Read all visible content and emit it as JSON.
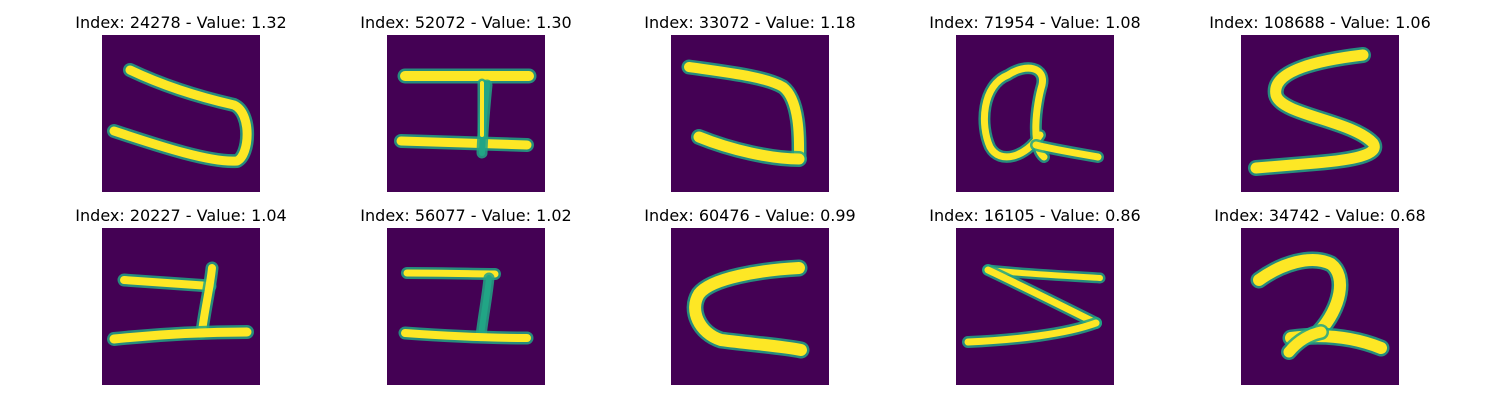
{
  "chart_data": {
    "type": "image-grid",
    "colormap": "viridis",
    "background_color": "#440154",
    "stroke_colors": [
      "#fde725",
      "#21a585",
      "#35b779"
    ],
    "panels": [
      {
        "title": "Index: 24278 - Value: 1.32",
        "index": 24278,
        "value": 1.32,
        "glyph": "U-rotated"
      },
      {
        "title": "Index: 52072 - Value: 1.30",
        "index": 52072,
        "value": 1.3,
        "glyph": "I-beam"
      },
      {
        "title": "Index: 33072 - Value: 1.18",
        "index": 33072,
        "value": 1.18,
        "glyph": "U-rotated-thick"
      },
      {
        "title": "Index: 71954 - Value: 1.08",
        "index": 71954,
        "value": 1.08,
        "glyph": "loop-a"
      },
      {
        "title": "Index: 108688 - Value: 1.06",
        "index": 108688,
        "value": 1.06,
        "glyph": "S"
      },
      {
        "title": "Index: 20227 - Value: 1.04",
        "index": 20227,
        "value": 1.04,
        "glyph": "bracket-left"
      },
      {
        "title": "Index: 56077 - Value: 1.02",
        "index": 56077,
        "value": 1.02,
        "glyph": "bracket-right"
      },
      {
        "title": "Index: 60476 - Value: 0.99",
        "index": 60476,
        "value": 0.99,
        "glyph": "C"
      },
      {
        "title": "Index: 16105 - Value: 0.86",
        "index": 16105,
        "value": 0.86,
        "glyph": "Z"
      },
      {
        "title": "Index: 34742 - Value: 0.68",
        "index": 34742,
        "value": 0.68,
        "glyph": "2"
      }
    ]
  }
}
